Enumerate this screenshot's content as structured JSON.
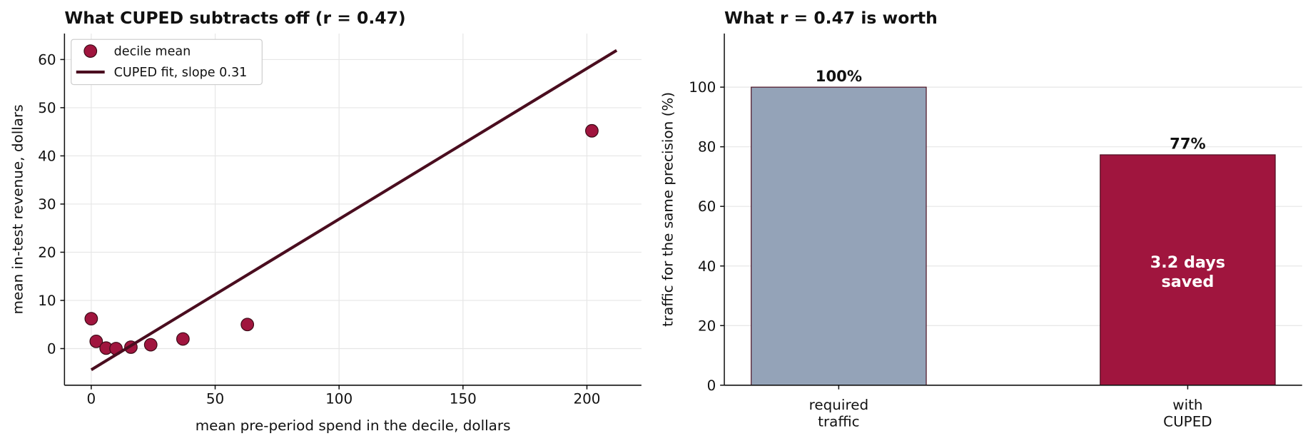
{
  "chart_data": [
    {
      "type": "scatter",
      "title": "What CUPED subtracts off  (r = 0.47)",
      "x_label": "mean pre-period spend in the decile, dollars",
      "y_label": "mean in-test revenue, dollars",
      "xlim": [
        -10.8,
        222
      ],
      "ylim": [
        -7.6,
        65.4
      ],
      "xticks": [
        0,
        50,
        100,
        150,
        200
      ],
      "yticks": [
        0,
        10,
        20,
        30,
        40,
        50,
        60
      ],
      "grid": true,
      "legend": "upper left",
      "series": [
        {
          "name": "decile mean",
          "type": "scatter",
          "color": "#a0153e",
          "x": [
            0,
            2,
            6,
            10,
            16,
            24,
            37,
            63,
            202
          ],
          "values": [
            6.2,
            1.5,
            0.1,
            0,
            0.3,
            0.8,
            2,
            5,
            45.2
          ]
        },
        {
          "name": "CUPED fit, slope 0.31",
          "type": "line",
          "color": "#4a0d1f",
          "x": [
            0,
            212
          ],
          "values": [
            -4.4,
            61.9
          ]
        }
      ]
    },
    {
      "type": "bar",
      "title": "What r = 0.47 is worth",
      "y_label": "traffic for the same precision (%)",
      "categories": [
        "required\ntraffic",
        "with\nCUPED"
      ],
      "values": [
        100,
        77.3
      ],
      "value_labels": [
        "100%",
        "77%"
      ],
      "colors": [
        "#94a3b8",
        "#a0153e"
      ],
      "ylim": [
        0,
        118
      ],
      "yticks": [
        0,
        20,
        40,
        60,
        80,
        100
      ],
      "grid": true,
      "annotation": "3.2 days\nsaved"
    }
  ]
}
